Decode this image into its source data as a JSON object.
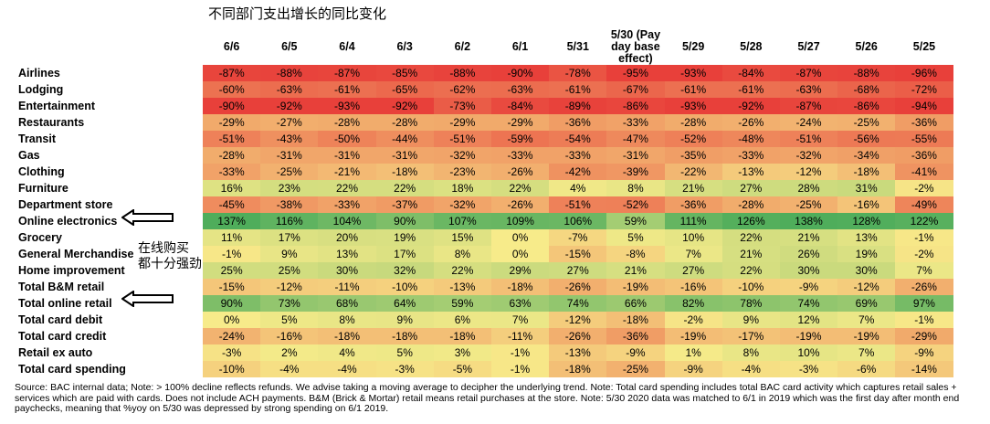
{
  "title": "不同部门支出增长的同比变化",
  "chart_data": {
    "type": "heatmap",
    "columns": [
      "6/6",
      "6/5",
      "6/4",
      "6/3",
      "6/2",
      "6/1",
      "5/31",
      "5/30 (Pay day base effect)",
      "5/29",
      "5/28",
      "5/27",
      "5/26",
      "5/25"
    ],
    "rows": [
      {
        "label": "Airlines",
        "values": [
          -87,
          -88,
          -87,
          -85,
          -88,
          -90,
          -78,
          -95,
          -93,
          -84,
          -87,
          -88,
          -96
        ]
      },
      {
        "label": "Lodging",
        "values": [
          -60,
          -63,
          -61,
          -65,
          -62,
          -63,
          -61,
          -67,
          -61,
          -61,
          -63,
          -68,
          -72
        ]
      },
      {
        "label": "Entertainment",
        "values": [
          -90,
          -92,
          -93,
          -92,
          -73,
          -84,
          -89,
          -86,
          -93,
          -92,
          -87,
          -86,
          -94
        ]
      },
      {
        "label": "Restaurants",
        "values": [
          -29,
          -27,
          -28,
          -28,
          -29,
          -29,
          -36,
          -33,
          -28,
          -26,
          -24,
          -25,
          -36
        ]
      },
      {
        "label": "Transit",
        "values": [
          -51,
          -43,
          -50,
          -44,
          -51,
          -59,
          -54,
          -47,
          -52,
          -48,
          -51,
          -56,
          -55
        ]
      },
      {
        "label": "Gas",
        "values": [
          -28,
          -31,
          -31,
          -31,
          -32,
          -33,
          -33,
          -31,
          -35,
          -33,
          -32,
          -34,
          -36
        ]
      },
      {
        "label": "Clothing",
        "values": [
          -33,
          -25,
          -21,
          -18,
          -23,
          -26,
          -42,
          -39,
          -22,
          -13,
          -12,
          -18,
          -41
        ]
      },
      {
        "label": "Furniture",
        "values": [
          16,
          23,
          22,
          22,
          18,
          22,
          4,
          8,
          21,
          27,
          28,
          31,
          -2
        ]
      },
      {
        "label": "Department store",
        "values": [
          -45,
          -38,
          -33,
          -37,
          -32,
          -26,
          -51,
          -52,
          -36,
          -28,
          -25,
          -16,
          -49
        ]
      },
      {
        "label": "Online electronics",
        "values": [
          137,
          116,
          104,
          90,
          107,
          109,
          106,
          59,
          111,
          126,
          138,
          128,
          122
        ]
      },
      {
        "label": "Grocery",
        "values": [
          11,
          17,
          20,
          19,
          15,
          0,
          -7,
          5,
          10,
          22,
          21,
          13,
          -1
        ]
      },
      {
        "label": "General Merchandise",
        "values": [
          -1,
          9,
          13,
          17,
          8,
          0,
          -15,
          -8,
          7,
          21,
          26,
          19,
          -2
        ]
      },
      {
        "label": "Home improvement",
        "values": [
          25,
          25,
          30,
          32,
          22,
          29,
          27,
          21,
          27,
          22,
          30,
          30,
          7
        ]
      },
      {
        "label": "Total B&M retail",
        "values": [
          -15,
          -12,
          -11,
          -10,
          -13,
          -18,
          -26,
          -19,
          -16,
          -10,
          -9,
          -12,
          -26
        ]
      },
      {
        "label": "Total online retail",
        "values": [
          90,
          73,
          68,
          64,
          59,
          63,
          74,
          66,
          82,
          78,
          74,
          69,
          97
        ]
      },
      {
        "label": "Total card debit",
        "values": [
          0,
          5,
          8,
          9,
          6,
          7,
          -12,
          -18,
          -2,
          9,
          12,
          7,
          -1
        ]
      },
      {
        "label": "Total card credit",
        "values": [
          -24,
          -16,
          -18,
          -18,
          -18,
          -11,
          -26,
          -36,
          -19,
          -17,
          -19,
          -19,
          -29
        ]
      },
      {
        "label": "Retail ex auto",
        "values": [
          -3,
          2,
          4,
          5,
          3,
          -1,
          -13,
          -9,
          1,
          8,
          10,
          7,
          -9
        ]
      },
      {
        "label": "Total card spending",
        "values": [
          -10,
          -4,
          -4,
          -3,
          -5,
          -1,
          -18,
          -25,
          -9,
          -4,
          -3,
          -6,
          -14
        ]
      }
    ],
    "value_suffix": "%",
    "colors": {
      "low": "#e8403a",
      "mid": "#f7eb8a",
      "high": "#4fad5b"
    }
  },
  "annotations": {
    "online_electronics_arrow": "Online electronics",
    "online_text_line1": "在线购买",
    "online_text_line2": "都十分强劲",
    "total_online_arrow": "Total online retail"
  },
  "source_note": "Source: BAC internal data; Note: > 100% decline reflects refunds. We advise taking a moving average to decipher the underlying trend. Note: Total card spending includes total BAC card activity which captures retail sales + services which are paid with cards. Does not include ACH payments. B&M (Brick & Mortar) retail means retail purchases at the store. Note: 5/30 2020 data was matched to 6/1 in 2019 which was the first day after month end paychecks, meaning that %yoy on 5/30 was depressed by strong spending on 6/1 2019."
}
